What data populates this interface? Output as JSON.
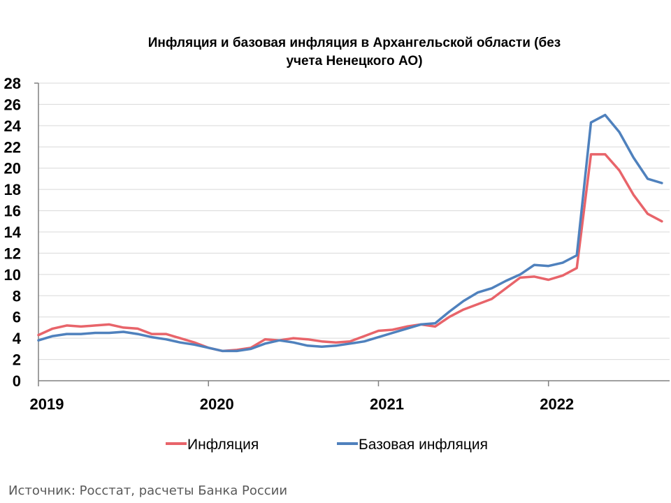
{
  "chart_data": {
    "type": "line",
    "title_lines": [
      "Инфляция и базовая инфляция в Архангельской области (без",
      "учета Ненецкого АО)"
    ],
    "xlabel": "",
    "ylabel": "",
    "x_start": "2019-01",
    "x_ticks": [
      "2019",
      "2020",
      "2021",
      "2022"
    ],
    "yticks": [
      "0",
      "2",
      "4",
      "6",
      "8",
      "10",
      "12",
      "14",
      "16",
      "18",
      "20",
      "22",
      "24",
      "26",
      "28"
    ],
    "ylim": [
      0,
      28
    ],
    "grid": "horizontal",
    "legend_position": "bottom",
    "series": [
      {
        "name": "Инфляция",
        "color": "#e8646a",
        "values": [
          4.3,
          4.9,
          5.2,
          5.1,
          5.2,
          5.3,
          5.0,
          4.9,
          4.4,
          4.4,
          4.0,
          3.6,
          3.1,
          2.8,
          2.9,
          3.1,
          3.9,
          3.8,
          4.0,
          3.9,
          3.7,
          3.6,
          3.7,
          4.2,
          4.7,
          4.8,
          5.1,
          5.3,
          5.1,
          6.0,
          6.7,
          7.2,
          7.7,
          8.7,
          9.7,
          9.8,
          9.5,
          9.9,
          10.6,
          21.3,
          21.3,
          19.8,
          17.5,
          15.7,
          15.0
        ]
      },
      {
        "name": "Базовая инфляция",
        "color": "#4f81bd",
        "values": [
          3.8,
          4.2,
          4.4,
          4.4,
          4.5,
          4.5,
          4.6,
          4.4,
          4.1,
          3.9,
          3.6,
          3.4,
          3.1,
          2.8,
          2.8,
          3.0,
          3.5,
          3.8,
          3.6,
          3.3,
          3.2,
          3.3,
          3.5,
          3.7,
          4.1,
          4.5,
          4.9,
          5.3,
          5.4,
          6.5,
          7.5,
          8.3,
          8.7,
          9.4,
          10.0,
          10.9,
          10.8,
          11.1,
          11.8,
          24.3,
          25.0,
          23.4,
          21.0,
          19.0,
          18.6
        ]
      }
    ]
  },
  "source_text": "Источник: Росстат, расчеты Банка России"
}
